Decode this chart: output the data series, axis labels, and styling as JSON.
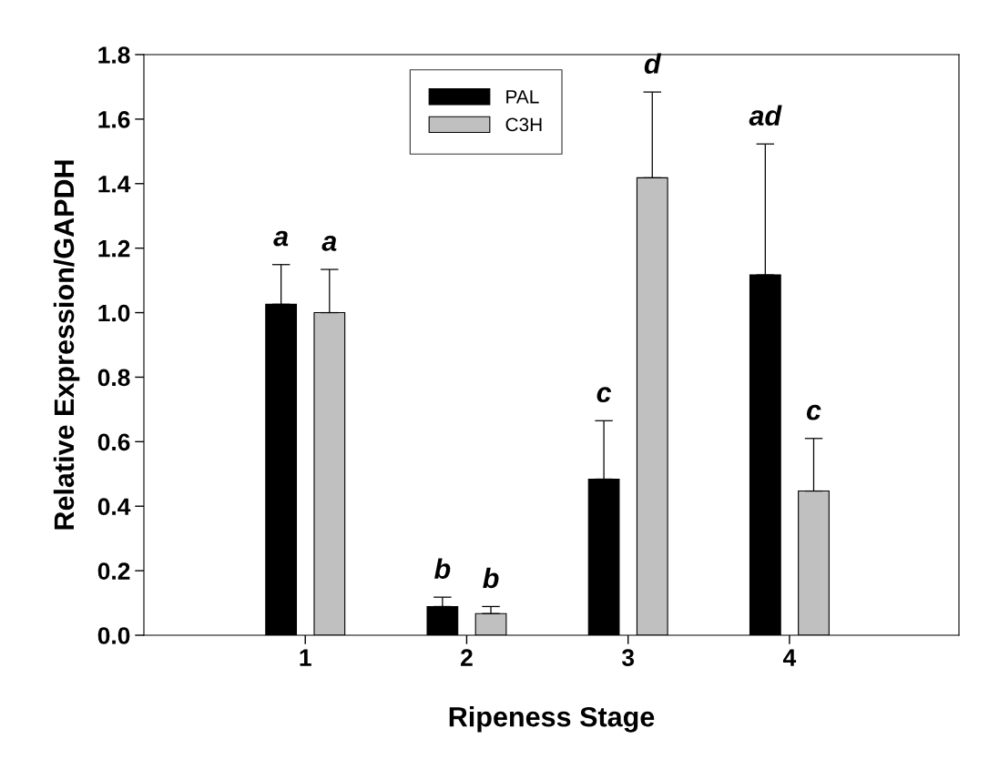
{
  "chart_data": {
    "type": "bar",
    "xlabel": "Ripeness Stage",
    "ylabel": "Relative Expression/GAPDH",
    "categories": [
      "1",
      "2",
      "3",
      "4"
    ],
    "series": [
      {
        "name": "PAL",
        "color": "#000000",
        "values": [
          1.026,
          0.089,
          0.484,
          1.117
        ],
        "errors": [
          [
            1.026,
            1.149
          ],
          [
            0.089,
            0.118
          ],
          [
            0.484,
            0.665
          ],
          [
            1.117,
            1.523
          ]
        ]
      },
      {
        "name": "C3H",
        "color": "#c0c0c0",
        "values": [
          1.0,
          0.067,
          1.418,
          0.447
        ],
        "errors": [
          [
            1.0,
            1.134
          ],
          [
            0.067,
            0.089
          ],
          [
            1.418,
            1.684
          ],
          [
            0.447,
            0.61
          ]
        ]
      }
    ],
    "annotations": [
      "a",
      "a",
      "b",
      "b",
      "c",
      "d",
      "ad",
      "c"
    ],
    "ylim": [
      0,
      1.8
    ],
    "yticks": [
      {
        "value": 0,
        "label": "0.0"
      },
      {
        "value": 0.2,
        "label": "0.2"
      },
      {
        "value": 0.4,
        "label": "0.4"
      },
      {
        "value": 0.6,
        "label": "0.6"
      },
      {
        "value": 0.8,
        "label": "0.8"
      },
      {
        "value": 1.0,
        "label": "1.0"
      },
      {
        "value": 1.2,
        "label": "1.2"
      },
      {
        "value": 1.4,
        "label": "1.4"
      },
      {
        "value": 1.6,
        "label": "1.6"
      },
      {
        "value": 1.8,
        "label": "1.8"
      }
    ],
    "grid": false,
    "legend": "top"
  }
}
